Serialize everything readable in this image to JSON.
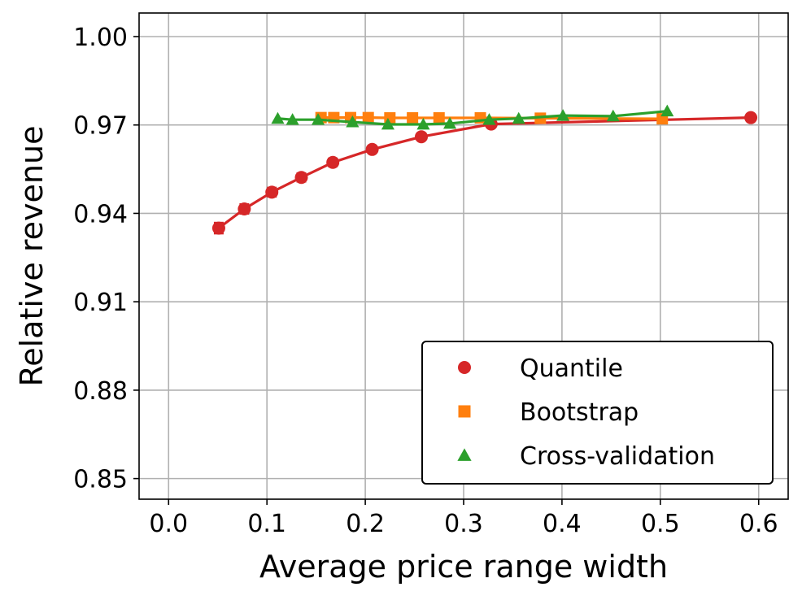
{
  "chart_data": {
    "type": "line",
    "title": "",
    "xlabel": "Average price range width",
    "ylabel": "Relative revenue",
    "xlim": [
      -0.03,
      0.63
    ],
    "ylim": [
      0.843,
      1.008
    ],
    "xticks": [
      0.0,
      0.1,
      0.2,
      0.3,
      0.4,
      0.5,
      0.6
    ],
    "xtick_labels": [
      "0.0",
      "0.1",
      "0.2",
      "0.3",
      "0.4",
      "0.5",
      "0.6"
    ],
    "yticks": [
      0.85,
      0.88,
      0.91,
      0.94,
      0.97,
      1.0
    ],
    "ytick_labels": [
      "0.85",
      "0.88",
      "0.91",
      "0.94",
      "0.97",
      "1.00"
    ],
    "grid": true,
    "legend_position": "lower-right",
    "series": [
      {
        "name": "Quantile",
        "color": "#d62728",
        "marker": "circle",
        "x": [
          0.051,
          0.077,
          0.105,
          0.135,
          0.167,
          0.207,
          0.257,
          0.328,
          0.592
        ],
        "y": [
          0.935,
          0.9415,
          0.9472,
          0.9522,
          0.9573,
          0.9617,
          0.966,
          0.9703,
          0.9725
        ],
        "err": [
          0.0018,
          0.0016,
          0.0015,
          0.0014,
          0.0013,
          0.0011,
          0.0009,
          0.0007,
          0.0005
        ]
      },
      {
        "name": "Bootstrap",
        "color": "#ff7f0e",
        "marker": "square",
        "x": [
          0.155,
          0.168,
          0.185,
          0.203,
          0.225,
          0.248,
          0.275,
          0.317,
          0.378,
          0.502
        ],
        "y": [
          0.9725,
          0.9725,
          0.9725,
          0.9725,
          0.9724,
          0.9724,
          0.9724,
          0.9724,
          0.9723,
          0.9721
        ]
      },
      {
        "name": "Cross-validation",
        "color": "#2ca02c",
        "marker": "triangle",
        "x": [
          0.111,
          0.126,
          0.152,
          0.187,
          0.223,
          0.259,
          0.286,
          0.326,
          0.356,
          0.401,
          0.452,
          0.507
        ],
        "y": [
          0.9722,
          0.9718,
          0.9718,
          0.971,
          0.9702,
          0.9702,
          0.9705,
          0.9718,
          0.9722,
          0.9732,
          0.973,
          0.9747
        ]
      }
    ]
  }
}
